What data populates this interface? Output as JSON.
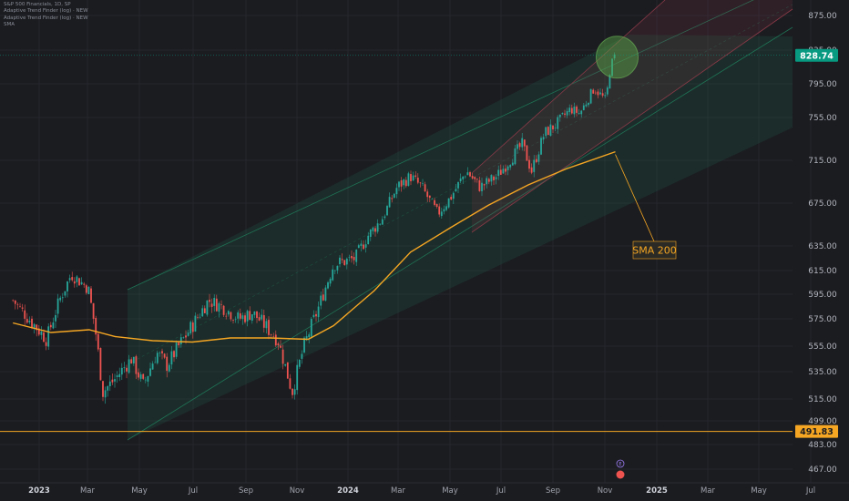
{
  "legend": {
    "title": "S&P 500 Financials, 1D, SP",
    "ind1": "Adaptive Trend Finder (log) · NEW",
    "ind2": "Adaptive Trend Finder (log) · NEW",
    "ind3": "SMA"
  },
  "colors": {
    "background": "#1b1c20",
    "up": "#26a69a",
    "down": "#ef5350",
    "sma": "#f5a623",
    "channel_green": "#1f7a5a",
    "channel_red": "#8a3a48",
    "price_badge": "#089981",
    "support_line": "#f5a623"
  },
  "chart_data": {
    "type": "candlestick",
    "x_ticks": [
      "2023",
      "Mar",
      "May",
      "Jul",
      "Sep",
      "Nov",
      "2024",
      "Mar",
      "May",
      "Jul",
      "Sep",
      "Nov",
      "2025",
      "Mar",
      "May",
      "Jul"
    ],
    "y_ticks": [
      "875.00",
      "835.00",
      "795.00",
      "755.00",
      "715.00",
      "675.00",
      "635.00",
      "615.00",
      "595.00",
      "575.00",
      "555.00",
      "535.00",
      "515.00",
      "499.00",
      "483.00",
      "467.00"
    ],
    "last_price": "828.74",
    "horizontal_level": "491.83",
    "annotation": "SMA 200",
    "event_marker": "E",
    "price_path": [
      [
        "2022-12-01",
        590
      ],
      [
        "2022-12-20",
        575
      ],
      [
        "2023-01-10",
        560
      ],
      [
        "2023-01-25",
        590
      ],
      [
        "2023-02-08",
        612
      ],
      [
        "2023-02-28",
        600
      ],
      [
        "2023-03-10",
        560
      ],
      [
        "2023-03-17",
        520
      ],
      [
        "2023-04-01",
        530
      ],
      [
        "2023-04-20",
        545
      ],
      [
        "2023-05-04",
        525
      ],
      [
        "2023-05-20",
        550
      ],
      [
        "2023-06-01",
        540
      ],
      [
        "2023-06-15",
        555
      ],
      [
        "2023-07-01",
        570
      ],
      [
        "2023-07-20",
        590
      ],
      [
        "2023-08-05",
        585
      ],
      [
        "2023-08-25",
        575
      ],
      [
        "2023-09-10",
        580
      ],
      [
        "2023-09-25",
        570
      ],
      [
        "2023-10-10",
        560
      ],
      [
        "2023-10-27",
        520
      ],
      [
        "2023-11-10",
        555
      ],
      [
        "2023-11-25",
        580
      ],
      [
        "2023-12-15",
        620
      ],
      [
        "2024-01-10",
        625
      ],
      [
        "2024-01-25",
        645
      ],
      [
        "2024-02-10",
        660
      ],
      [
        "2024-02-28",
        690
      ],
      [
        "2024-03-15",
        700
      ],
      [
        "2024-03-28",
        690
      ],
      [
        "2024-04-16",
        665
      ],
      [
        "2024-05-01",
        680
      ],
      [
        "2024-05-20",
        705
      ],
      [
        "2024-06-05",
        690
      ],
      [
        "2024-06-25",
        700
      ],
      [
        "2024-07-10",
        715
      ],
      [
        "2024-07-25",
        730
      ],
      [
        "2024-08-05",
        705
      ],
      [
        "2024-08-20",
        740
      ],
      [
        "2024-09-05",
        750
      ],
      [
        "2024-09-20",
        765
      ],
      [
        "2024-10-01",
        760
      ],
      [
        "2024-10-18",
        790
      ],
      [
        "2024-11-01",
        775
      ],
      [
        "2024-11-06",
        815
      ],
      [
        "2024-11-12",
        828.74
      ]
    ],
    "sma_200": [
      [
        "2022-12-01",
        572
      ],
      [
        "2023-01-15",
        565
      ],
      [
        "2023-03-01",
        567
      ],
      [
        "2023-04-01",
        562
      ],
      [
        "2023-05-15",
        559
      ],
      [
        "2023-07-01",
        558
      ],
      [
        "2023-08-15",
        561
      ],
      [
        "2023-10-01",
        561
      ],
      [
        "2023-11-15",
        560
      ],
      [
        "2023-12-15",
        570
      ],
      [
        "2024-02-01",
        598
      ],
      [
        "2024-03-15",
        630
      ],
      [
        "2024-05-01",
        652
      ],
      [
        "2024-06-15",
        673
      ],
      [
        "2024-08-01",
        692
      ],
      [
        "2024-09-15",
        707
      ],
      [
        "2024-11-12",
        723
      ]
    ]
  }
}
